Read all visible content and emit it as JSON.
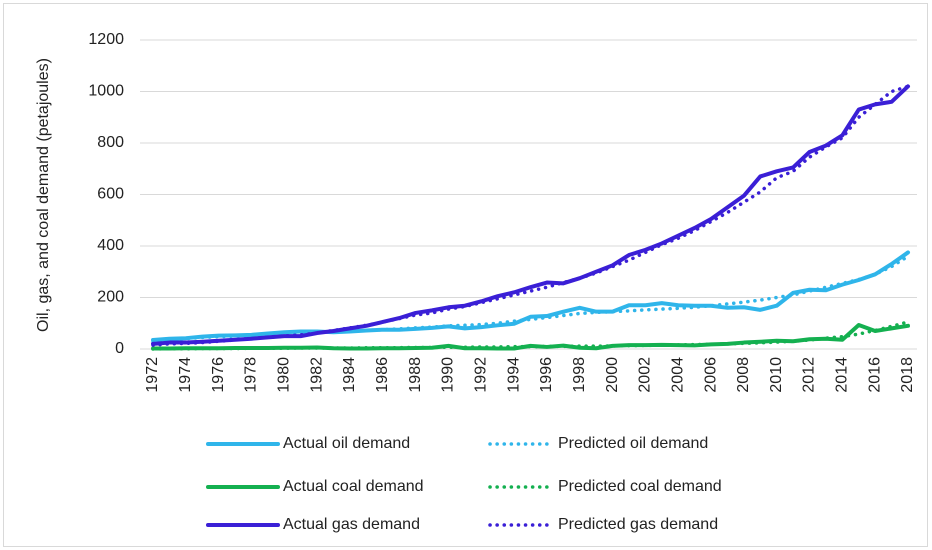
{
  "chart_data": {
    "type": "line",
    "y_label": "Oil, gas, and coal demand (petajoules)",
    "categories": [
      "1972",
      null,
      "1974",
      null,
      "1976",
      null,
      "1978",
      null,
      "1980",
      null,
      "1982",
      null,
      "1984",
      null,
      "1986",
      null,
      "1988",
      null,
      "1990",
      null,
      "1992",
      null,
      "1994",
      null,
      "1996",
      null,
      "1998",
      null,
      "2000",
      null,
      "2002",
      null,
      "2004",
      null,
      "2006",
      null,
      "2008",
      null,
      "2010",
      null,
      "2012",
      null,
      "2014",
      null,
      "2016",
      null,
      "2018"
    ],
    "ylim": [
      0,
      1200
    ],
    "yticks": [
      0,
      200,
      400,
      600,
      800,
      1000,
      1200
    ],
    "grid": true,
    "legend": "bottom",
    "series": [
      {
        "name": "Actual oil demand",
        "color": "#2fb5ea",
        "style": "solid",
        "values": [
          35,
          40,
          42,
          48,
          52,
          53,
          55,
          60,
          65,
          68,
          68,
          65,
          68,
          72,
          75,
          75,
          78,
          82,
          88,
          80,
          85,
          92,
          98,
          125,
          128,
          145,
          160,
          145,
          145,
          170,
          170,
          178,
          170,
          168,
          168,
          160,
          162,
          152,
          168,
          218,
          230,
          228,
          250,
          268,
          290,
          330,
          375
        ]
      },
      {
        "name": "Predicted oil demand",
        "color": "#2fb5ea",
        "style": "dotted",
        "values": [
          30,
          35,
          40,
          45,
          48,
          50,
          52,
          55,
          60,
          62,
          65,
          68,
          70,
          72,
          75,
          78,
          82,
          85,
          90,
          92,
          95,
          100,
          108,
          115,
          122,
          130,
          138,
          142,
          145,
          148,
          152,
          155,
          158,
          162,
          168,
          175,
          182,
          190,
          200,
          210,
          225,
          240,
          255,
          270,
          290,
          320,
          360
        ]
      },
      {
        "name": "Actual coal demand",
        "color": "#14b050",
        "style": "solid",
        "values": [
          2,
          2,
          3,
          3,
          3,
          4,
          4,
          4,
          5,
          5,
          6,
          3,
          2,
          2,
          3,
          3,
          4,
          5,
          12,
          3,
          3,
          2,
          2,
          12,
          8,
          13,
          5,
          3,
          12,
          15,
          15,
          16,
          15,
          14,
          18,
          20,
          25,
          28,
          32,
          30,
          38,
          40,
          36,
          93,
          70,
          80,
          90
        ]
      },
      {
        "name": "Predicted coal demand",
        "color": "#14b050",
        "style": "dotted",
        "values": [
          0,
          1,
          1,
          2,
          2,
          2,
          3,
          3,
          3,
          4,
          4,
          4,
          4,
          5,
          5,
          5,
          6,
          6,
          7,
          7,
          8,
          8,
          9,
          9,
          10,
          10,
          11,
          11,
          12,
          13,
          14,
          15,
          16,
          17,
          18,
          20,
          22,
          24,
          27,
          30,
          35,
          42,
          48,
          58,
          72,
          88,
          105
        ]
      },
      {
        "name": "Actual gas demand",
        "color": "#3a1fd6",
        "style": "solid",
        "values": [
          20,
          25,
          25,
          28,
          32,
          36,
          40,
          45,
          50,
          50,
          62,
          70,
          80,
          90,
          105,
          120,
          140,
          150,
          162,
          168,
          185,
          205,
          220,
          240,
          258,
          255,
          275,
          300,
          325,
          365,
          385,
          410,
          440,
          470,
          505,
          550,
          595,
          670,
          690,
          705,
          765,
          790,
          830,
          930,
          950,
          960,
          1020
        ]
      },
      {
        "name": "Predicted gas demand",
        "color": "#3a1fd6",
        "style": "dotted",
        "values": [
          15,
          20,
          22,
          25,
          30,
          35,
          40,
          45,
          50,
          55,
          62,
          72,
          82,
          92,
          105,
          118,
          132,
          140,
          155,
          165,
          180,
          195,
          210,
          225,
          240,
          258,
          275,
          295,
          320,
          345,
          375,
          405,
          430,
          460,
          495,
          530,
          570,
          610,
          665,
          690,
          745,
          785,
          820,
          900,
          950,
          1000,
          1020
        ]
      }
    ]
  }
}
